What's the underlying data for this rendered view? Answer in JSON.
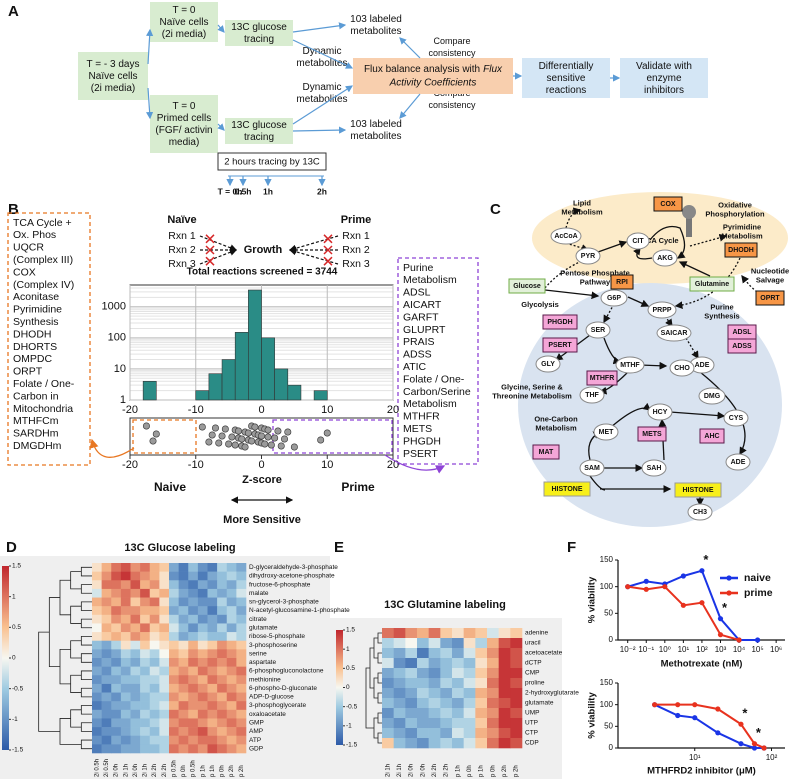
{
  "panel_labels": [
    "A",
    "B",
    "C",
    "D",
    "E",
    "F"
  ],
  "panel_a": {
    "start": [
      "T = - 3 days",
      "Naïve cells",
      "(2i media)"
    ],
    "naive": [
      "T = 0",
      "Naïve cells",
      "(2i media)"
    ],
    "primed": [
      "T = 0",
      "Primed cells",
      "(FGF/ activin",
      "media)"
    ],
    "tracing_top": [
      "13C glucose",
      "tracing"
    ],
    "tracing_bottom": [
      "13C glucose",
      "tracing"
    ],
    "labeled_top": [
      "103 labeled",
      "metabolites"
    ],
    "labeled_bottom": [
      "103 labeled",
      "metabolites"
    ],
    "compare_top": [
      "Compare",
      "consistency"
    ],
    "compare_bottom": [
      "Compare",
      "consistency"
    ],
    "dynamic_top": [
      "Dynamic",
      "metabolites"
    ],
    "dynamic_bottom": [
      "Dynamic",
      "metabolites"
    ],
    "fba": [
      "Flux balance analysis with",
      "Flux",
      "Activity Coefficients"
    ],
    "reactions": [
      "Differentially",
      "sensitive",
      "reactions"
    ],
    "validate": [
      "Validate with",
      "enzyme",
      "inhibitors"
    ],
    "timeline": "2 hours tracing by 13C",
    "timepoints": [
      "T = 0h",
      "0.5h",
      "1h",
      "2h"
    ]
  },
  "panel_b": {
    "left_box": {
      "color": "#e87722",
      "groups": [
        {
          "title": [
            "TCA Cycle +",
            "Ox. Phos"
          ],
          "items": [
            "UQCR",
            "(Complex III)",
            "COX",
            "(Complex IV)",
            "Aconitase"
          ]
        },
        {
          "title": [
            "Pyrimidine",
            "Synthesis"
          ],
          "items": [
            "DHODH",
            "DHORTS",
            "OMPDC",
            "ORPT"
          ]
        },
        {
          "title": [
            "Folate / One-",
            "Carbon in",
            "Mitochondria"
          ],
          "items": [
            "MTHFCm",
            "SARDHm",
            "DMGDHm"
          ]
        }
      ]
    },
    "right_box": {
      "color": "#8e44d6",
      "groups": [
        {
          "title": [
            "Purine",
            "Metabolism"
          ],
          "items": [
            "ADSL",
            "AICART",
            "GARFT",
            "GLUPRT",
            "PRAIS",
            "ADSS",
            "ATIC"
          ]
        },
        {
          "title": [
            "Folate / One-",
            "Carbon/Serine",
            "Metabolism"
          ],
          "items": [
            "MTHFR",
            "METS",
            "PHGDH",
            "PSERT"
          ]
        }
      ]
    },
    "naive_header": "Naïve",
    "prime_header": "Prime",
    "reactions": [
      "Rxn 1",
      "Rxn 2",
      "Rxn 3"
    ],
    "growth": "Growth",
    "bottom_naive": "Naive",
    "bottom_prime": "Prime",
    "xlabel": "Z-score",
    "sensitivity": "More Sensitive"
  },
  "panel_c": {
    "lipid": [
      "Lipid",
      "Metabolism"
    ],
    "oxphos": [
      "Oxidative",
      "Phosphorylation"
    ],
    "cox": "COX",
    "tca": "TCA Cycle",
    "accoa": "AcCoA",
    "pyr": "PYR",
    "cit": "CIT",
    "akg": "AKG",
    "pyrimidine": [
      "Pyrimidine",
      "Metabolism"
    ],
    "dhodh": "DHODH",
    "salvage": [
      "Nucleotide",
      "Salvage"
    ],
    "oprt": "OPRT",
    "glutamine": "Glutamine",
    "glucose": "Glucose",
    "ppp": [
      "Pentose Phosphate",
      "Pathway"
    ],
    "rpi": "RPI",
    "glycolysis": "Glycolysis",
    "g6p": "G6P",
    "prpp": "PRPP",
    "phgdh": "PHGDH",
    "psert": "PSERT",
    "ser": "SER",
    "purine": [
      "Purine",
      "Synthesis"
    ],
    "saicar": "SAICAR",
    "adsl": "ADSL",
    "adss": "ADSS",
    "gly": "GLY",
    "mthf": "MTHF",
    "cho": "CHO",
    "ade1": "ADE",
    "mthfr": "MTHFR",
    "thf": "THF",
    "dmg": "DMG",
    "gst": [
      "Glycine, Serine &",
      "Threonine Metabolism"
    ],
    "one_carbon": [
      "One-Carbon",
      "Metabolism"
    ],
    "met": "MET",
    "hcy": "HCY",
    "cys": "CYS",
    "mets": "METS",
    "ahc": "AHC",
    "mat": "MAT",
    "sam": "SAM",
    "sah": "SAH",
    "ade2": "ADE",
    "histone1": "HISTONE",
    "histone2": "HISTONE",
    "ch3": "CH3"
  },
  "chart_data": [
    {
      "type": "histogram",
      "title": "Total reactions screened = 3744",
      "bins": [
        -18,
        -16,
        -14,
        -12,
        -10,
        -8,
        -6,
        -4,
        -2,
        0,
        2,
        4,
        6,
        8,
        10
      ],
      "counts": [
        4,
        0,
        0,
        0,
        2,
        7,
        20,
        150,
        3446,
        100,
        10,
        3,
        0,
        2
      ],
      "color": "#2a8c86",
      "xlim": [
        -20,
        20
      ],
      "xticks": [
        -20,
        -10,
        0,
        10,
        20
      ],
      "ylim": [
        1,
        5000
      ],
      "yticks": [
        1,
        10,
        100,
        1000
      ],
      "log_y": true,
      "grid": true
    },
    {
      "type": "strip",
      "color": "#9a9a9a",
      "values": [
        -17.5,
        -16.5,
        -16,
        -9,
        -8,
        -7.5,
        -7,
        -6.5,
        -6,
        -5.5,
        -5,
        -4.5,
        -4,
        -4,
        -3.5,
        -3.5,
        -3,
        -3,
        -2.5,
        -2.5,
        -2,
        -2,
        -1.5,
        -1.5,
        -1,
        -1,
        -0.5,
        -0.5,
        0,
        0,
        0,
        0.5,
        0.5,
        1,
        1,
        1.5,
        2,
        2.5,
        3,
        3.5,
        4,
        5,
        9,
        10
      ],
      "xlim": [
        -20,
        20
      ],
      "xticks": [
        -20,
        -10,
        0,
        10,
        20
      ]
    },
    {
      "type": "heatmap",
      "title": "13C Glucose labeling",
      "rows": [
        "D-glyceraldehyde-3-phosphate",
        "dihydroxy-acetone-phosphate",
        "fructose-6-phosphate",
        "malate",
        "sn-glycerol-3-phosphate",
        "N-acetyl-glucosamine-1-phosphate",
        "citrate",
        "glutamate",
        "ribose-5-phosphate",
        "3-phosphoserine",
        "serine",
        "aspartate",
        "6-phosphogluconolactone",
        "methionine",
        "6-phospho-D-gluconate",
        "ADP-D-glucose",
        "3-phosphoglycerate",
        "oxaloacetate",
        "GMP",
        "AMP",
        "ATP",
        "GDP"
      ],
      "columns": [
        "2i 0.5h",
        "2i 0.5h",
        "2i 0h",
        "2i 1h",
        "2i 0h",
        "2i 1h",
        "2i 2h",
        "2i 2h",
        "p 0.5h",
        "p 0h",
        "p 0.5h",
        "p 1h",
        "p 1h",
        "p 0h",
        "p 2h",
        "p 2h"
      ],
      "values": [
        [
          0.2,
          0.6,
          1,
          1.2,
          0.8,
          1,
          0.6,
          0.4,
          -0.8,
          -1.2,
          -0.6,
          -1,
          -1.2,
          -0.4,
          -0.6,
          -0.8
        ],
        [
          0.4,
          0.8,
          1.2,
          1.4,
          1,
          0.8,
          0.6,
          0.2,
          -1,
          -1.2,
          -0.8,
          -1.2,
          -0.8,
          -0.6,
          -0.4,
          -0.6
        ],
        [
          0.2,
          1,
          1,
          0.8,
          1.2,
          0.6,
          0.8,
          0.2,
          -0.6,
          -1,
          -1.2,
          -0.8,
          -1,
          -0.6,
          -0.8,
          -0.4
        ],
        [
          -0.2,
          0.6,
          0.8,
          1,
          0.8,
          1.2,
          0.4,
          0.6,
          -0.4,
          -0.8,
          -1,
          -1.2,
          -0.6,
          -0.8,
          -0.6,
          -0.2
        ],
        [
          0.6,
          0.8,
          0.6,
          1,
          0.4,
          0.8,
          1,
          0.2,
          -0.6,
          -1,
          -0.8,
          -1,
          -1,
          -0.4,
          -0.8,
          -0.6
        ],
        [
          0.4,
          0.6,
          1,
          0.8,
          0.8,
          0.6,
          0.6,
          0.4,
          -0.8,
          -0.6,
          -1,
          -0.8,
          -1.2,
          -0.6,
          -0.4,
          -0.8
        ],
        [
          0.2,
          0.4,
          0.8,
          0.6,
          1,
          0.4,
          0.8,
          0.2,
          -0.4,
          -0.8,
          -0.6,
          -1,
          -0.8,
          -1,
          -0.4,
          -0.6
        ],
        [
          0,
          0.6,
          0.4,
          0.8,
          0.6,
          1,
          0.4,
          0.6,
          -0.2,
          -0.6,
          -1,
          -0.6,
          -0.8,
          -0.4,
          -0.8,
          -0.4
        ],
        [
          0.2,
          0.4,
          0.6,
          0.4,
          0.8,
          0.6,
          0.2,
          0.4,
          -0.4,
          -0.8,
          -0.6,
          -0.4,
          -0.6,
          -0.6,
          -0.2,
          -0.4
        ],
        [
          -0.6,
          -0.8,
          -0.4,
          0.2,
          -0.2,
          0.4,
          0,
          0.2,
          0.4,
          0.2,
          0.6,
          0.2,
          0.4,
          0.8,
          0.6,
          0.4
        ],
        [
          -0.8,
          -1,
          -0.8,
          -0.4,
          -0.6,
          -0.2,
          -0.4,
          0,
          0.6,
          0.4,
          0.8,
          0.6,
          0.8,
          1,
          0.8,
          0.6
        ],
        [
          -1,
          -0.8,
          -1,
          -0.6,
          -0.8,
          -0.4,
          -0.6,
          -0.2,
          0.8,
          0.6,
          1,
          0.8,
          1,
          0.8,
          1,
          0.6
        ],
        [
          -0.8,
          -1,
          -0.6,
          -0.8,
          -0.4,
          -0.6,
          -0.2,
          -0.4,
          0.6,
          0.8,
          0.6,
          1,
          0.8,
          0.6,
          0.8,
          1
        ],
        [
          -1,
          -0.8,
          -0.8,
          -0.6,
          -0.6,
          -0.4,
          -0.4,
          -0.2,
          0.8,
          1,
          0.8,
          0.6,
          1,
          0.8,
          0.6,
          0.8
        ],
        [
          -0.8,
          -1.2,
          -0.6,
          -0.8,
          -0.8,
          -0.4,
          -0.6,
          -0.2,
          0.6,
          0.8,
          1,
          0.8,
          0.6,
          1,
          0.8,
          0.6
        ],
        [
          -1,
          -0.8,
          -1,
          -0.6,
          -0.8,
          -0.6,
          -0.4,
          -0.4,
          0.8,
          0.6,
          0.8,
          1,
          0.8,
          0.6,
          1,
          0.8
        ],
        [
          -1.2,
          -1,
          -0.8,
          -0.8,
          -0.6,
          -0.6,
          -0.4,
          -0.2,
          0.6,
          1,
          0.8,
          0.8,
          1,
          0.8,
          0.6,
          1
        ],
        [
          -0.8,
          -1,
          -1,
          -0.6,
          -0.8,
          -0.4,
          -0.6,
          -0.4,
          1,
          0.8,
          0.6,
          1,
          0.8,
          1,
          0.8,
          0.6
        ],
        [
          -1,
          -1.2,
          -0.8,
          -0.8,
          -0.6,
          -0.6,
          -0.4,
          -0.2,
          0.8,
          1,
          1,
          0.8,
          0.6,
          0.8,
          1,
          0.8
        ],
        [
          -1.2,
          -1,
          -1,
          -0.8,
          -0.6,
          -0.4,
          -0.6,
          -0.2,
          1,
          0.8,
          1,
          1.2,
          0.8,
          0.6,
          0.8,
          1
        ],
        [
          -1,
          -1.2,
          -0.8,
          -1,
          -0.8,
          -0.6,
          -0.4,
          -0.4,
          0.8,
          1,
          0.8,
          1,
          1,
          0.8,
          0.6,
          0.8
        ],
        [
          -1.2,
          -1,
          -1,
          -0.8,
          -0.8,
          -0.6,
          -0.6,
          -0.4,
          1,
          0.8,
          1,
          0.8,
          1.2,
          1,
          0.8,
          0.6
        ]
      ],
      "clim": [
        -1.5,
        1.5
      ],
      "colorbar_ticks": [
        1.5,
        1,
        0.5,
        0,
        -0.5,
        -1,
        -1.5
      ]
    },
    {
      "type": "heatmap",
      "title": "13C Glutamine labeling",
      "rows": [
        "adenine",
        "uracil",
        "acetoacetate",
        "dCTP",
        "CMP",
        "proline",
        "2-hydroxyglutarate",
        "glutamate",
        "UMP",
        "UTP",
        "CTP",
        "CDP"
      ],
      "columns": [
        "2i 1h",
        "2i 1h",
        "2i 0h",
        "2i 0h",
        "2i 2h",
        "2i 2h",
        "p 1h",
        "p 0h",
        "p 1h",
        "p 0h",
        "p 2h",
        "p 2h"
      ],
      "values": [
        [
          1,
          1.2,
          0.8,
          0.6,
          1,
          0.4,
          0.2,
          0.6,
          0.4,
          -0.2,
          0.2,
          0.4
        ],
        [
          -0.4,
          -0.2,
          0,
          -0.6,
          -0.2,
          -0.8,
          -1,
          0.2,
          -0.4,
          0.6,
          1.2,
          1.4
        ],
        [
          -0.6,
          -0.8,
          -0.4,
          -1.2,
          -0.6,
          -0.4,
          -0.8,
          -0.2,
          0.4,
          0.8,
          1.4,
          1.2
        ],
        [
          -0.2,
          -1,
          -1.2,
          -0.4,
          -0.8,
          -0.6,
          -0.4,
          -0.6,
          0.2,
          0.6,
          1.4,
          1.2
        ],
        [
          -0.8,
          -0.6,
          -0.4,
          -0.8,
          -1,
          -0.6,
          -0.2,
          -0.4,
          0.4,
          0.8,
          1.4,
          1.4
        ],
        [
          -1,
          -0.8,
          -0.6,
          -0.6,
          -0.8,
          -0.4,
          -0.6,
          -0.2,
          0.2,
          1,
          1.4,
          1.2
        ],
        [
          -0.8,
          -1,
          -0.8,
          -0.4,
          -0.6,
          -0.8,
          -0.4,
          -0.6,
          0.6,
          0.8,
          1.4,
          1.4
        ],
        [
          -0.6,
          -0.8,
          -1,
          -0.6,
          -0.4,
          -0.6,
          -0.8,
          -0.4,
          0.4,
          1,
          1.2,
          1.4
        ],
        [
          -1,
          -0.6,
          -0.8,
          -0.8,
          -0.6,
          -0.4,
          -0.6,
          -0.2,
          0.6,
          0.8,
          1.4,
          1.2
        ],
        [
          -0.8,
          -1,
          -0.6,
          -0.8,
          -0.8,
          -0.6,
          -0.4,
          -0.4,
          0.4,
          1,
          1.4,
          1.4
        ],
        [
          -0.6,
          -0.8,
          -1,
          -0.6,
          -0.6,
          -0.8,
          -0.2,
          -0.4,
          0.6,
          0.8,
          1.2,
          1.4
        ],
        [
          0.4,
          -0.6,
          -0.8,
          -1,
          -0.6,
          -0.4,
          -0.6,
          -0.2,
          0.4,
          1,
          1.4,
          1.2
        ]
      ],
      "clim": [
        -1.5,
        1.5
      ],
      "colorbar_ticks": [
        1.5,
        1,
        0.5,
        0,
        -0.5,
        -1,
        -1.5
      ]
    },
    {
      "type": "line",
      "xlabel": "Methotrexate (nM)",
      "ylabel": "% viability",
      "x": [
        0.01,
        0.1,
        1,
        10,
        100,
        1000,
        10000,
        100000
      ],
      "series": [
        {
          "name": "naive",
          "color": "#1a35e6",
          "values": [
            100,
            110,
            105,
            120,
            130,
            40,
            0,
            0
          ]
        },
        {
          "name": "prime",
          "color": "#e8321e",
          "values": [
            100,
            95,
            100,
            65,
            70,
            10,
            0,
            null
          ]
        }
      ],
      "log_x": true,
      "xlim": [
        0.003,
        3000000
      ],
      "xticks": [
        {
          "value": 0.01,
          "label": "10⁻²"
        },
        {
          "value": 0.1,
          "label": "10⁻¹"
        },
        {
          "value": 1,
          "label": "10⁰"
        },
        {
          "value": 10,
          "label": "10¹"
        },
        {
          "value": 100,
          "label": "10²"
        },
        {
          "value": 1000,
          "label": "10³"
        },
        {
          "value": 10000,
          "label": "10⁴"
        },
        {
          "value": 100000,
          "label": "10⁵"
        },
        {
          "value": 1000000,
          "label": "10⁶"
        }
      ],
      "ylim": [
        0,
        150
      ],
      "yticks": [
        0,
        50,
        100,
        150
      ],
      "legend": "upper right",
      "annotations": [
        "*",
        "*"
      ]
    },
    {
      "type": "line",
      "xlabel": "MTHFRD2 inhibitor (μM)",
      "ylabel": "% viability",
      "x": [
        3,
        6,
        10,
        20,
        40,
        60,
        80
      ],
      "series": [
        {
          "name": "naive",
          "color": "#1a35e6",
          "values": [
            100,
            75,
            70,
            35,
            10,
            0,
            0
          ]
        },
        {
          "name": "prime",
          "color": "#e8321e",
          "values": [
            100,
            100,
            100,
            90,
            55,
            10,
            0
          ]
        }
      ],
      "log_x": true,
      "xlim": [
        1,
        150
      ],
      "xticks": [
        {
          "value": 10,
          "label": "10¹"
        },
        {
          "value": 100,
          "label": "10²"
        }
      ],
      "ylim": [
        0,
        150
      ],
      "yticks": [
        0,
        50,
        100,
        150
      ],
      "annotations": [
        "*",
        "*"
      ]
    }
  ]
}
